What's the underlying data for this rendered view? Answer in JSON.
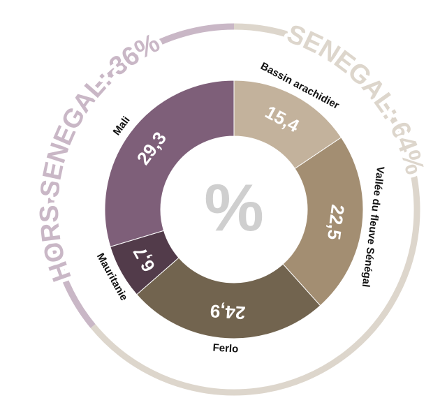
{
  "chart_data": {
    "type": "donut",
    "center_label": "%",
    "categories": [
      "Bassin arachidier",
      "Vallée du fleuve Sénégal",
      "Ferlo",
      "Mauritanie",
      "Mali"
    ],
    "values": [
      15.4,
      22.5,
      24.9,
      6.7,
      29.3
    ],
    "value_labels": [
      "15,4",
      "22,5",
      "24,9",
      "6,7",
      "29,3"
    ],
    "colors": [
      "#c3b29c",
      "#a38e72",
      "#72644f",
      "#523b4a",
      "#7e5f79"
    ],
    "groups": {
      "labels": [
        "SENEGAL: 64%",
        "HORS SENEGAL: 36%"
      ],
      "values": [
        64,
        36
      ],
      "colors": [
        "#ddd6cc",
        "#c9b7c6"
      ]
    }
  }
}
